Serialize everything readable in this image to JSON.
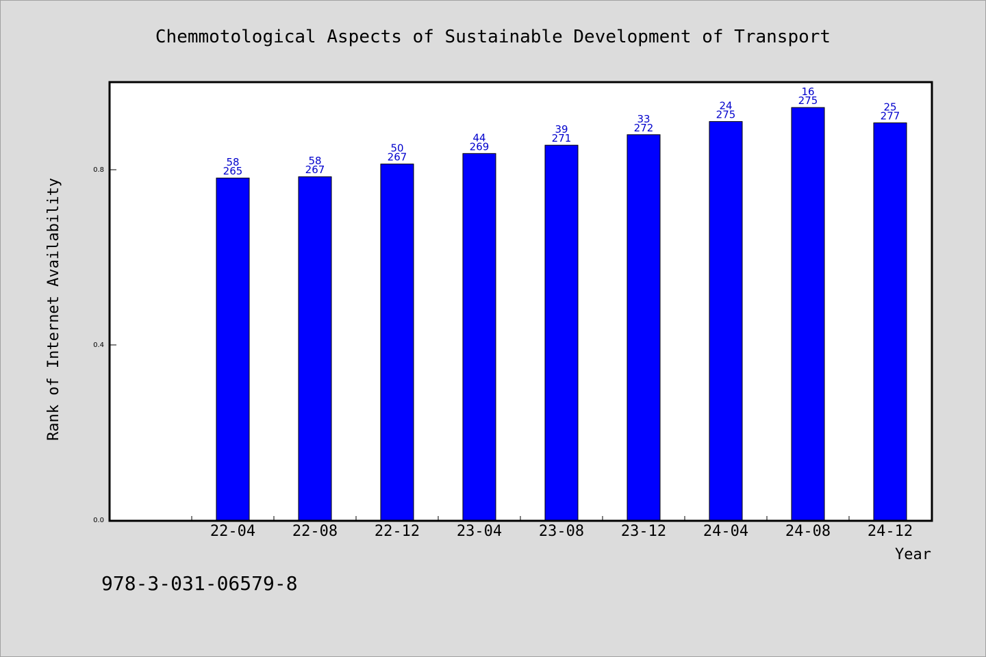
{
  "chart_data": {
    "type": "bar",
    "title": "Chemmotological Aspects of Sustainable Development of Transport",
    "xlabel": "Year",
    "ylabel": "Rank of Internet Availability",
    "ylim": [
      0,
      1.0
    ],
    "yticks": [
      "0.0",
      "0.4",
      "0.8"
    ],
    "ytick_values": [
      0.0,
      0.4,
      0.8
    ],
    "categories": [
      "22-04",
      "22-08",
      "22-12",
      "23-04",
      "23-08",
      "23-12",
      "24-04",
      "24-08",
      "24-12"
    ],
    "values": [
      0.781,
      0.784,
      0.813,
      0.837,
      0.856,
      0.88,
      0.91,
      0.942,
      0.907
    ],
    "labels_top": [
      "58",
      "58",
      "50",
      "44",
      "39",
      "33",
      "24",
      "16",
      "25"
    ],
    "labels_bottom": [
      "265",
      "267",
      "267",
      "269",
      "271",
      "272",
      "275",
      "275",
      "277"
    ],
    "bar_color": "#0000ff",
    "label_color": "#0000cc",
    "background": "#dcdcdc",
    "plot_background": "#ffffff",
    "grid": false
  },
  "footer": {
    "isbn": "978-3-031-06579-8"
  }
}
